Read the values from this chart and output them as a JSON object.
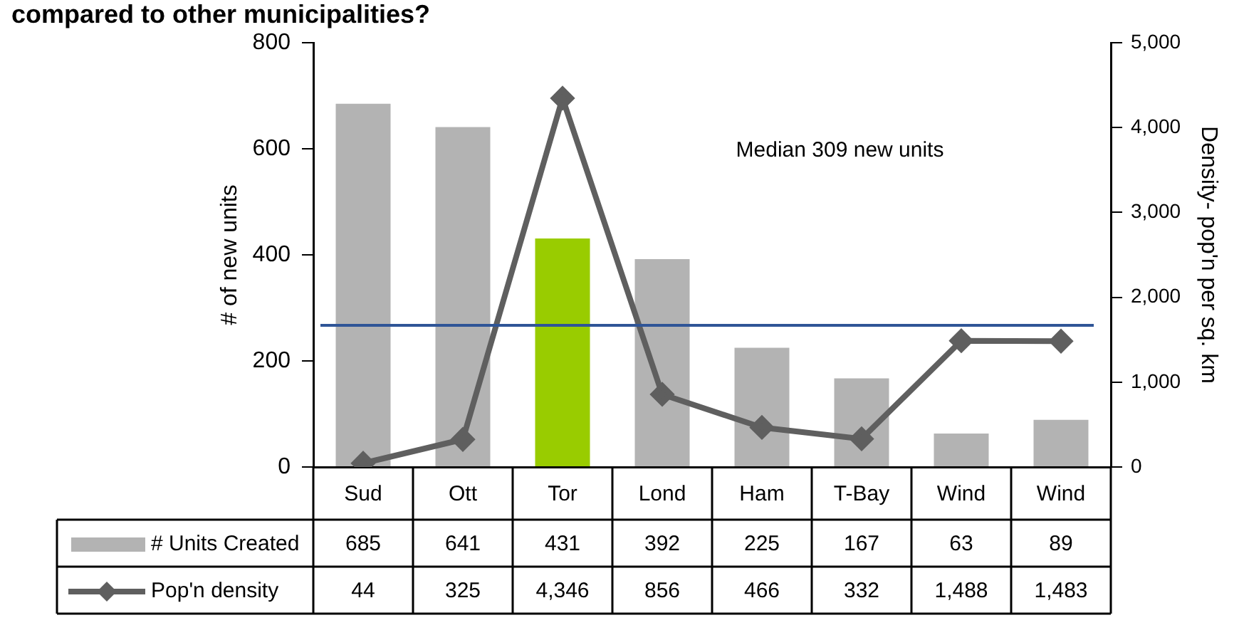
{
  "chart_data": {
    "type": "bar",
    "title": "compared to other municipalities?",
    "categories": [
      "Sud",
      "Ott",
      "Tor",
      "Lond",
      "Ham",
      "T-Bay",
      "Wind",
      "Wind"
    ],
    "series": [
      {
        "name": "# Units Created",
        "colors": [
          "#b3b3b3",
          "#b3b3b3",
          "#99cc00",
          "#b3b3b3",
          "#b3b3b3",
          "#b3b3b3",
          "#b3b3b3",
          "#b3b3b3"
        ],
        "color": "#b3b3b3",
        "values": [
          685,
          641,
          431,
          392,
          225,
          167,
          63,
          89
        ],
        "value_labels": [
          "685",
          "641",
          "431",
          "392",
          "225",
          "167",
          "63",
          "89"
        ]
      },
      {
        "name": "Pop'n density",
        "type": "line",
        "axis": "y2",
        "color": "#5f5f5f",
        "marker": "diamond",
        "values": [
          44,
          325,
          4346,
          856,
          466,
          332,
          1488,
          1483
        ],
        "value_labels": [
          "44",
          "325",
          "4,346",
          "856",
          "466",
          "332",
          "1,488",
          "1,483"
        ]
      }
    ],
    "ylabel": "# of new units",
    "y2label": "Density- pop'n per sq. km",
    "ylim": [
      0,
      800
    ],
    "yticks": [
      0,
      200,
      400,
      600,
      800
    ],
    "y2lim": [
      0,
      5000
    ],
    "y2ticks": [
      0,
      {
        "value": 1000,
        "label": "1,000"
      },
      {
        "value": 2000,
        "label": "2,000"
      },
      {
        "value": 3000,
        "label": "3,000"
      },
      {
        "value": 4000,
        "label": "4,000"
      },
      {
        "value": 5000,
        "label": "5,000"
      }
    ],
    "ref_lines": [
      {
        "axis": "y",
        "value": 267,
        "color": "#2f5597"
      }
    ],
    "annotations": [
      "Median 309 new units"
    ],
    "legend": "bottom left",
    "grid": false
  }
}
